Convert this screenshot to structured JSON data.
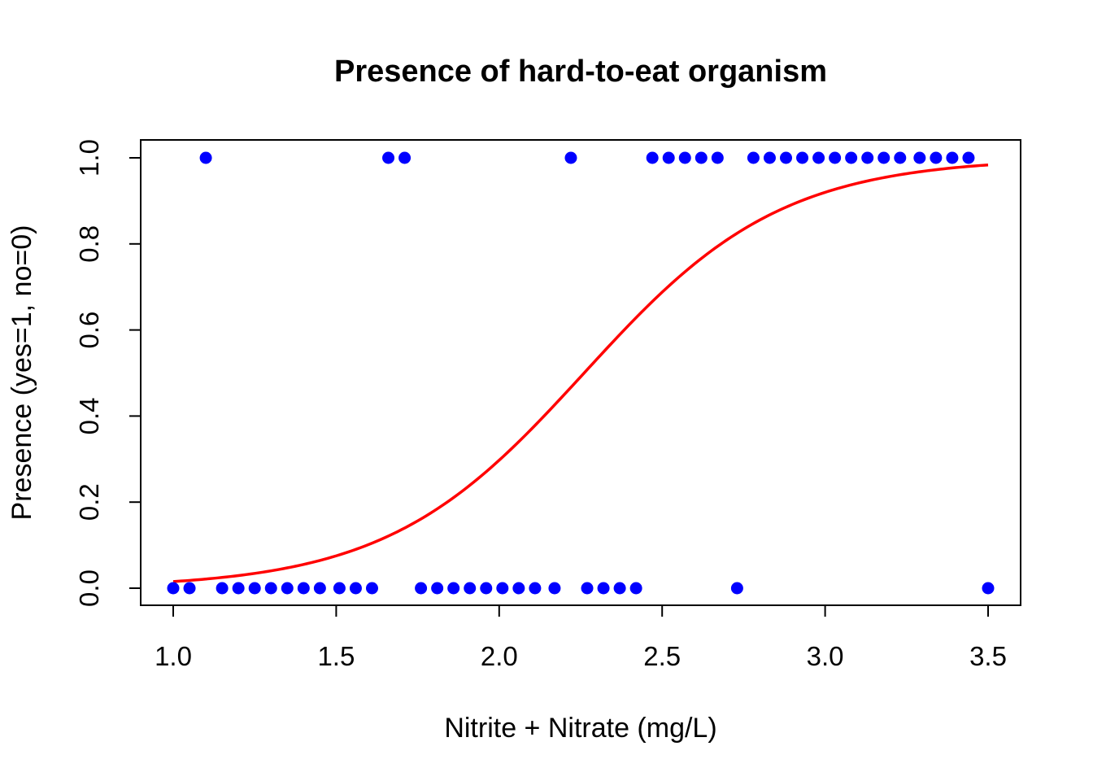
{
  "chart_data": {
    "type": "scatter",
    "title": "Presence of hard-to-eat organism",
    "xlabel": "Nitrite + Nitrate (mg/L)",
    "ylabel": "Presence (yes=1, no=0)",
    "xlim": [
      1.0,
      3.5
    ],
    "ylim": [
      0.0,
      1.0
    ],
    "x_ticks": [
      1.0,
      1.5,
      2.0,
      2.5,
      3.0,
      3.5
    ],
    "x_tick_labels": [
      "1.0",
      "1.5",
      "2.0",
      "2.5",
      "3.0",
      "3.5"
    ],
    "y_ticks": [
      0.0,
      0.2,
      0.4,
      0.6,
      0.8,
      1.0
    ],
    "y_tick_labels": [
      "0.0",
      "0.2",
      "0.4",
      "0.6",
      "0.8",
      "1.0"
    ],
    "grid": false,
    "colors": {
      "points": "#0000ff",
      "curve": "#ff0000",
      "axes": "#000000"
    },
    "points": [
      {
        "x": 1.0,
        "y": 0
      },
      {
        "x": 1.05,
        "y": 0
      },
      {
        "x": 1.1,
        "y": 1
      },
      {
        "x": 1.15,
        "y": 0
      },
      {
        "x": 1.2,
        "y": 0
      },
      {
        "x": 1.25,
        "y": 0
      },
      {
        "x": 1.3,
        "y": 0
      },
      {
        "x": 1.35,
        "y": 0
      },
      {
        "x": 1.4,
        "y": 0
      },
      {
        "x": 1.45,
        "y": 0
      },
      {
        "x": 1.51,
        "y": 0
      },
      {
        "x": 1.56,
        "y": 0
      },
      {
        "x": 1.61,
        "y": 0
      },
      {
        "x": 1.66,
        "y": 1
      },
      {
        "x": 1.71,
        "y": 1
      },
      {
        "x": 1.76,
        "y": 0
      },
      {
        "x": 1.81,
        "y": 0
      },
      {
        "x": 1.86,
        "y": 0
      },
      {
        "x": 1.91,
        "y": 0
      },
      {
        "x": 1.96,
        "y": 0
      },
      {
        "x": 2.01,
        "y": 0
      },
      {
        "x": 2.06,
        "y": 0
      },
      {
        "x": 2.11,
        "y": 0
      },
      {
        "x": 2.17,
        "y": 0
      },
      {
        "x": 2.22,
        "y": 1
      },
      {
        "x": 2.27,
        "y": 0
      },
      {
        "x": 2.32,
        "y": 0
      },
      {
        "x": 2.37,
        "y": 0
      },
      {
        "x": 2.42,
        "y": 0
      },
      {
        "x": 2.47,
        "y": 1
      },
      {
        "x": 2.52,
        "y": 1
      },
      {
        "x": 2.57,
        "y": 1
      },
      {
        "x": 2.62,
        "y": 1
      },
      {
        "x": 2.67,
        "y": 1
      },
      {
        "x": 2.73,
        "y": 0
      },
      {
        "x": 2.78,
        "y": 1
      },
      {
        "x": 2.83,
        "y": 1
      },
      {
        "x": 2.88,
        "y": 1
      },
      {
        "x": 2.93,
        "y": 1
      },
      {
        "x": 2.98,
        "y": 1
      },
      {
        "x": 3.03,
        "y": 1
      },
      {
        "x": 3.08,
        "y": 1
      },
      {
        "x": 3.13,
        "y": 1
      },
      {
        "x": 3.18,
        "y": 1
      },
      {
        "x": 3.23,
        "y": 1
      },
      {
        "x": 3.29,
        "y": 1
      },
      {
        "x": 3.34,
        "y": 1
      },
      {
        "x": 3.39,
        "y": 1
      },
      {
        "x": 3.44,
        "y": 1
      },
      {
        "x": 3.5,
        "y": 0
      }
    ],
    "fitted_curve": {
      "type": "logistic",
      "intercept": -7.46,
      "slope": 3.3,
      "x_range": [
        1.0,
        3.5
      ]
    }
  }
}
